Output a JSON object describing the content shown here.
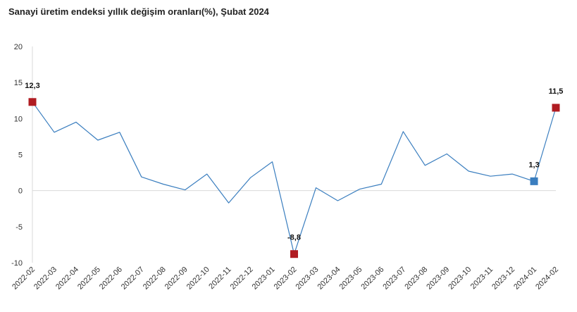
{
  "chart_data": {
    "type": "line",
    "title": "Sanayi üretim endeksi yıllık değişim oranları(%), Şubat 2024",
    "xlabel": "",
    "ylabel": "",
    "ylim": [
      -10,
      20
    ],
    "yticks": [
      -10,
      -5,
      0,
      5,
      10,
      15,
      20
    ],
    "yticklabels": [
      "-10",
      "-5",
      "0",
      "5",
      "10",
      "15",
      "20"
    ],
    "grid": false,
    "x": [
      "2022-02",
      "2022-03",
      "2022-04",
      "2022-05",
      "2022-06",
      "2022-07",
      "2022-08",
      "2022-09",
      "2022-10",
      "2022-11",
      "2022-12",
      "2023-01",
      "2023-02",
      "2023-03",
      "2023-04",
      "2023-05",
      "2023-06",
      "2023-07",
      "2023-08",
      "2023-09",
      "2023-10",
      "2023-11",
      "2023-12",
      "2024-01",
      "2024-02"
    ],
    "series": [
      {
        "color": "#3a7ebf",
        "values": [
          12.3,
          8.1,
          9.5,
          7.0,
          8.1,
          1.9,
          0.9,
          0.1,
          2.3,
          -1.7,
          1.8,
          4.0,
          -8.8,
          0.4,
          -1.4,
          0.2,
          0.9,
          8.2,
          3.5,
          5.1,
          2.7,
          2.0,
          2.3,
          1.3,
          11.5
        ]
      }
    ],
    "annotations": [
      {
        "x": "2022-02",
        "value": 12.3,
        "label": "12,3",
        "marker": "square",
        "color": "#b01c22"
      },
      {
        "x": "2023-02",
        "value": -8.8,
        "label": "-8,8",
        "marker": "square",
        "color": "#b01c22"
      },
      {
        "x": "2024-01",
        "value": 1.3,
        "label": "1,3",
        "marker": "square",
        "color": "#3a7ebf"
      },
      {
        "x": "2024-02",
        "value": 11.5,
        "label": "11,5",
        "marker": "square",
        "color": "#b01c22"
      }
    ],
    "zero_line_color": "#d9d9d9"
  }
}
